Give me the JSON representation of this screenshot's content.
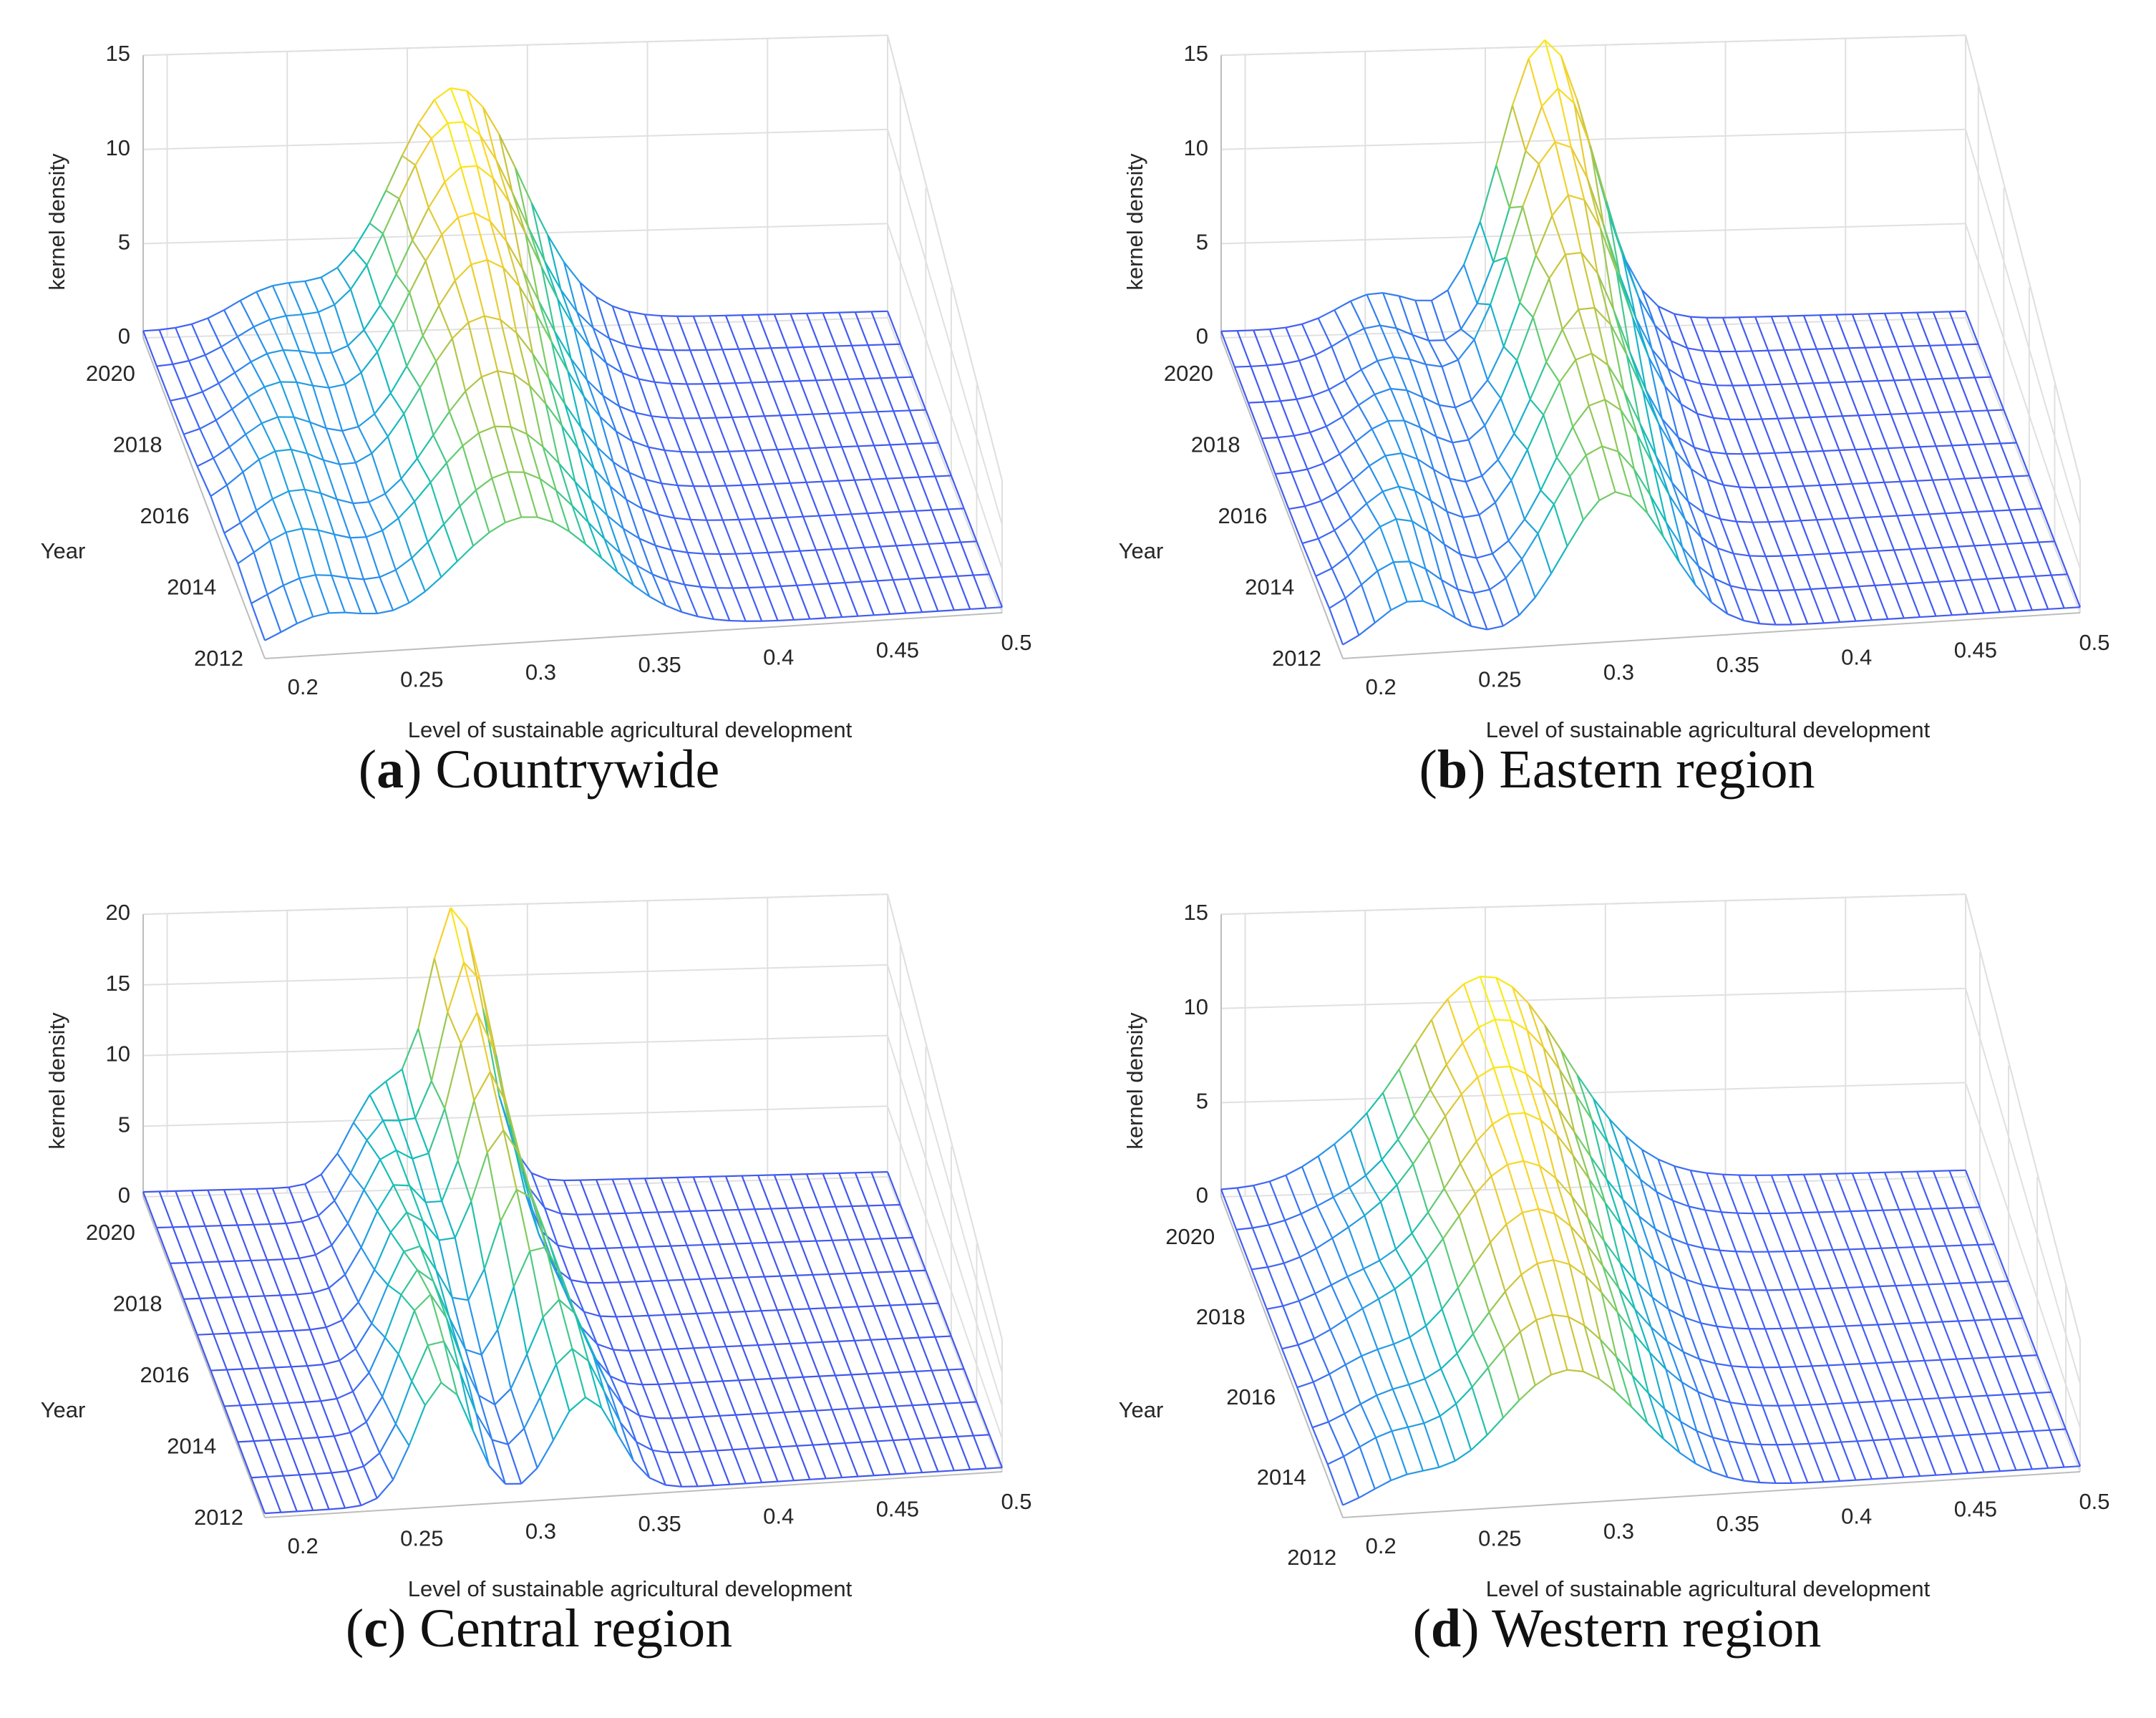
{
  "chart_data": [
    {
      "type": "surface3d",
      "caption_letter": "a",
      "caption_text": ") Countrywide",
      "caption_open": "(",
      "zlabel": "kernel density",
      "ylabel": "Year",
      "xlabel": "Level of sustainable agricultural development",
      "xticks": [
        "0.2",
        "0.25",
        "0.3",
        "0.35",
        "0.4",
        "0.45",
        "0.5"
      ],
      "yticks": [
        "2012",
        "2014",
        "2016",
        "2018",
        "2020"
      ],
      "zticks": [
        "0",
        "5",
        "10",
        "15"
      ],
      "xlim": [
        0.19,
        0.5
      ],
      "ylim": [
        2012,
        2021
      ],
      "zlim": [
        0,
        15
      ],
      "years": [
        2012,
        2013,
        2014,
        2015,
        2016,
        2017,
        2018,
        2019,
        2020,
        2021
      ],
      "peak_by_year": [
        {
          "year": 2012,
          "components": [
            {
              "mu": 0.215,
              "sigma": 0.018,
              "height": 2.0
            },
            {
              "mu": 0.3,
              "sigma": 0.032,
              "height": 7.5
            }
          ]
        },
        {
          "year": 2013,
          "components": [
            {
              "mu": 0.215,
              "sigma": 0.018,
              "height": 2.2
            },
            {
              "mu": 0.3,
              "sigma": 0.03,
              "height": 8.0
            }
          ]
        },
        {
          "year": 2014,
          "components": [
            {
              "mu": 0.215,
              "sigma": 0.018,
              "height": 2.8
            },
            {
              "mu": 0.3,
              "sigma": 0.03,
              "height": 8.5
            }
          ]
        },
        {
          "year": 2015,
          "components": [
            {
              "mu": 0.22,
              "sigma": 0.018,
              "height": 3.0
            },
            {
              "mu": 0.305,
              "sigma": 0.028,
              "height": 9.5
            }
          ]
        },
        {
          "year": 2016,
          "components": [
            {
              "mu": 0.22,
              "sigma": 0.018,
              "height": 3.2
            },
            {
              "mu": 0.305,
              "sigma": 0.028,
              "height": 10.5
            }
          ]
        },
        {
          "year": 2017,
          "components": [
            {
              "mu": 0.225,
              "sigma": 0.018,
              "height": 3.0
            },
            {
              "mu": 0.31,
              "sigma": 0.027,
              "height": 11.5
            }
          ]
        },
        {
          "year": 2018,
          "components": [
            {
              "mu": 0.23,
              "sigma": 0.018,
              "height": 2.8
            },
            {
              "mu": 0.31,
              "sigma": 0.027,
              "height": 12.0
            }
          ]
        },
        {
          "year": 2019,
          "components": [
            {
              "mu": 0.235,
              "sigma": 0.018,
              "height": 2.5
            },
            {
              "mu": 0.315,
              "sigma": 0.027,
              "height": 12.5
            }
          ]
        },
        {
          "year": 2020,
          "components": [
            {
              "mu": 0.24,
              "sigma": 0.018,
              "height": 2.2
            },
            {
              "mu": 0.315,
              "sigma": 0.027,
              "height": 12.8
            }
          ]
        },
        {
          "year": 2021,
          "components": [
            {
              "mu": 0.245,
              "sigma": 0.018,
              "height": 2.0
            },
            {
              "mu": 0.32,
              "sigma": 0.027,
              "height": 12.5
            }
          ]
        }
      ]
    },
    {
      "type": "surface3d",
      "caption_letter": "b",
      "caption_text": ") Eastern region",
      "caption_open": "(",
      "zlabel": "kernel density",
      "ylabel": "Year",
      "xlabel": "Level of sustainable agricultural development",
      "xticks": [
        "0.2",
        "0.25",
        "0.3",
        "0.35",
        "0.4",
        "0.45",
        "0.5"
      ],
      "yticks": [
        "2012",
        "2014",
        "2016",
        "2018",
        "2020"
      ],
      "zticks": [
        "0",
        "5",
        "10",
        "15"
      ],
      "xlim": [
        0.19,
        0.5
      ],
      "ylim": [
        2012,
        2021
      ],
      "zlim": [
        0,
        15
      ],
      "years": [
        2012,
        2013,
        2014,
        2015,
        2016,
        2017,
        2018,
        2019,
        2020,
        2021
      ],
      "peak_by_year": [
        {
          "year": 2012,
          "components": [
            {
              "mu": 0.22,
              "sigma": 0.016,
              "height": 3.0
            },
            {
              "mu": 0.305,
              "sigma": 0.022,
              "height": 9.0
            }
          ]
        },
        {
          "year": 2013,
          "components": [
            {
              "mu": 0.22,
              "sigma": 0.016,
              "height": 3.2
            },
            {
              "mu": 0.305,
              "sigma": 0.022,
              "height": 9.5
            }
          ]
        },
        {
          "year": 2014,
          "components": [
            {
              "mu": 0.225,
              "sigma": 0.016,
              "height": 3.5
            },
            {
              "mu": 0.31,
              "sigma": 0.021,
              "height": 10.0
            }
          ]
        },
        {
          "year": 2015,
          "components": [
            {
              "mu": 0.23,
              "sigma": 0.016,
              "height": 3.2
            },
            {
              "mu": 0.31,
              "sigma": 0.021,
              "height": 10.5
            }
          ]
        },
        {
          "year": 2016,
          "components": [
            {
              "mu": 0.235,
              "sigma": 0.016,
              "height": 3.0
            },
            {
              "mu": 0.315,
              "sigma": 0.021,
              "height": 11.0
            }
          ]
        },
        {
          "year": 2017,
          "components": [
            {
              "mu": 0.24,
              "sigma": 0.016,
              "height": 2.8
            },
            {
              "mu": 0.315,
              "sigma": 0.02,
              "height": 12.0
            }
          ]
        },
        {
          "year": 2018,
          "components": [
            {
              "mu": 0.245,
              "sigma": 0.016,
              "height": 2.5
            },
            {
              "mu": 0.32,
              "sigma": 0.02,
              "height": 13.0
            }
          ]
        },
        {
          "year": 2019,
          "components": [
            {
              "mu": 0.25,
              "sigma": 0.016,
              "height": 2.2
            },
            {
              "mu": 0.32,
              "sigma": 0.02,
              "height": 13.8
            }
          ]
        },
        {
          "year": 2020,
          "components": [
            {
              "mu": 0.25,
              "sigma": 0.016,
              "height": 2.0
            },
            {
              "mu": 0.325,
              "sigma": 0.019,
              "height": 14.5
            }
          ]
        },
        {
          "year": 2021,
          "components": [
            {
              "mu": 0.255,
              "sigma": 0.016,
              "height": 1.8
            },
            {
              "mu": 0.325,
              "sigma": 0.019,
              "height": 15.0
            }
          ]
        }
      ]
    },
    {
      "type": "surface3d",
      "caption_letter": "c",
      "caption_text": ") Central region",
      "caption_open": "(",
      "zlabel": "kernel density",
      "ylabel": "Year",
      "xlabel": "Level of sustainable agricultural development",
      "xticks": [
        "0.2",
        "0.25",
        "0.3",
        "0.35",
        "0.4",
        "0.45",
        "0.5"
      ],
      "yticks": [
        "2012",
        "2014",
        "2016",
        "2018",
        "2020"
      ],
      "zticks": [
        "0",
        "5",
        "10",
        "15",
        "20"
      ],
      "xlim": [
        0.19,
        0.5
      ],
      "ylim": [
        2012,
        2021
      ],
      "zlim": [
        0,
        20
      ],
      "years": [
        2012,
        2013,
        2014,
        2015,
        2016,
        2017,
        2018,
        2019,
        2020,
        2021
      ],
      "peak_by_year": [
        {
          "year": 2012,
          "components": [
            {
              "mu": 0.265,
              "sigma": 0.012,
              "height": 10.0
            },
            {
              "mu": 0.325,
              "sigma": 0.013,
              "height": 8.0
            }
          ]
        },
        {
          "year": 2013,
          "components": [
            {
              "mu": 0.268,
              "sigma": 0.012,
              "height": 10.5
            },
            {
              "mu": 0.325,
              "sigma": 0.013,
              "height": 9.0
            }
          ]
        },
        {
          "year": 2014,
          "components": [
            {
              "mu": 0.27,
              "sigma": 0.012,
              "height": 11.0
            },
            {
              "mu": 0.325,
              "sigma": 0.013,
              "height": 10.0
            }
          ]
        },
        {
          "year": 2015,
          "components": [
            {
              "mu": 0.272,
              "sigma": 0.012,
              "height": 10.0
            },
            {
              "mu": 0.322,
              "sigma": 0.013,
              "height": 11.5
            }
          ]
        },
        {
          "year": 2016,
          "components": [
            {
              "mu": 0.275,
              "sigma": 0.012,
              "height": 9.0
            },
            {
              "mu": 0.32,
              "sigma": 0.013,
              "height": 13.0
            }
          ]
        },
        {
          "year": 2017,
          "components": [
            {
              "mu": 0.278,
              "sigma": 0.012,
              "height": 8.5
            },
            {
              "mu": 0.318,
              "sigma": 0.013,
              "height": 14.5
            }
          ]
        },
        {
          "year": 2018,
          "components": [
            {
              "mu": 0.28,
              "sigma": 0.012,
              "height": 8.0
            },
            {
              "mu": 0.318,
              "sigma": 0.012,
              "height": 16.0
            }
          ]
        },
        {
          "year": 2019,
          "components": [
            {
              "mu": 0.282,
              "sigma": 0.012,
              "height": 7.5
            },
            {
              "mu": 0.318,
              "sigma": 0.012,
              "height": 17.5
            }
          ]
        },
        {
          "year": 2020,
          "components": [
            {
              "mu": 0.285,
              "sigma": 0.012,
              "height": 7.0
            },
            {
              "mu": 0.32,
              "sigma": 0.012,
              "height": 18.5
            }
          ]
        },
        {
          "year": 2021,
          "components": [
            {
              "mu": 0.288,
              "sigma": 0.012,
              "height": 6.5
            },
            {
              "mu": 0.32,
              "sigma": 0.012,
              "height": 19.5
            }
          ]
        }
      ]
    },
    {
      "type": "surface3d",
      "caption_letter": "d",
      "caption_text": ") Western region",
      "caption_open": "(",
      "zlabel": "kernel density",
      "ylabel": "Year",
      "xlabel": "Level of sustainable agricultural development",
      "xticks": [
        "0.2",
        "0.25",
        "0.3",
        "0.35",
        "0.4",
        "0.45",
        "0.5"
      ],
      "yticks": [
        "2012",
        "2014",
        "2016",
        "2018",
        "2020"
      ],
      "zticks": [
        "0",
        "5",
        "10",
        "15"
      ],
      "xlim": [
        0.19,
        0.5
      ],
      "ylim": [
        2013,
        2021
      ],
      "zlim": [
        0,
        15
      ],
      "years": [
        2013,
        2014,
        2015,
        2016,
        2017,
        2018,
        2019,
        2020,
        2021
      ],
      "peak_by_year": [
        {
          "year": 2013,
          "components": [
            {
              "mu": 0.215,
              "sigma": 0.015,
              "height": 1.5
            },
            {
              "mu": 0.285,
              "sigma": 0.03,
              "height": 8.0
            }
          ]
        },
        {
          "year": 2014,
          "components": [
            {
              "mu": 0.215,
              "sigma": 0.015,
              "height": 1.6
            },
            {
              "mu": 0.285,
              "sigma": 0.03,
              "height": 8.8
            }
          ]
        },
        {
          "year": 2015,
          "components": [
            {
              "mu": 0.22,
              "sigma": 0.015,
              "height": 1.5
            },
            {
              "mu": 0.29,
              "sigma": 0.03,
              "height": 9.5
            }
          ]
        },
        {
          "year": 2016,
          "components": [
            {
              "mu": 0.22,
              "sigma": 0.015,
              "height": 1.4
            },
            {
              "mu": 0.29,
              "sigma": 0.03,
              "height": 10.0
            }
          ]
        },
        {
          "year": 2017,
          "components": [
            {
              "mu": 0.225,
              "sigma": 0.015,
              "height": 1.2
            },
            {
              "mu": 0.29,
              "sigma": 0.031,
              "height": 10.3
            }
          ]
        },
        {
          "year": 2018,
          "components": [
            {
              "mu": 0.225,
              "sigma": 0.015,
              "height": 1.0
            },
            {
              "mu": 0.295,
              "sigma": 0.031,
              "height": 10.6
            }
          ]
        },
        {
          "year": 2019,
          "components": [
            {
              "mu": 0.23,
              "sigma": 0.015,
              "height": 0.8
            },
            {
              "mu": 0.295,
              "sigma": 0.032,
              "height": 10.8
            }
          ]
        },
        {
          "year": 2020,
          "components": [
            {
              "mu": 0.23,
              "sigma": 0.015,
              "height": 0.6
            },
            {
              "mu": 0.3,
              "sigma": 0.032,
              "height": 11.0
            }
          ]
        },
        {
          "year": 2021,
          "components": [
            {
              "mu": 0.235,
              "sigma": 0.015,
              "height": 0.5
            },
            {
              "mu": 0.3,
              "sigma": 0.033,
              "height": 11.0
            }
          ]
        }
      ]
    }
  ]
}
